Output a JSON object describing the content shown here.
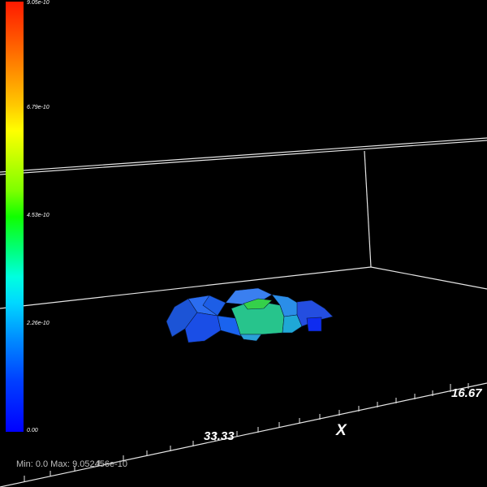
{
  "colorbar": {
    "ticks": [
      "9.05e-10",
      "6.79e-10",
      "4.53e-10",
      "2.26e-10",
      "0.00"
    ]
  },
  "axis": {
    "x_title": "X",
    "tick_33": "33.33",
    "tick_16": "16.67"
  },
  "status": {
    "text": "Min: 0.0 Max: 9.052456e-10"
  }
}
